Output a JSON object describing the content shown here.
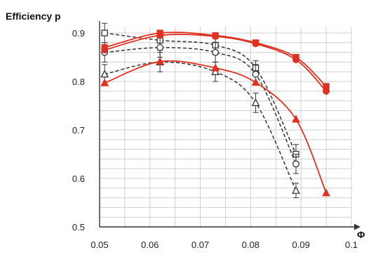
{
  "chart_data": {
    "type": "line",
    "ylabel": "Efficiency p",
    "xlabel": "Φ",
    "xlim": [
      0.05,
      0.1
    ],
    "ylim": [
      0.5,
      0.9
    ],
    "x_ticks": [
      "0.05",
      "0.06",
      "0.07",
      "0.08",
      "0.09",
      "0.1"
    ],
    "y_ticks": [
      "0.5",
      "0.6",
      "0.7",
      "0.8",
      "0.9"
    ],
    "grid": true,
    "legend": "none",
    "series": [
      {
        "color": "#e03020",
        "style": "solid",
        "marker": "square",
        "x": [
          0.051,
          0.062,
          0.073,
          0.081,
          0.089,
          0.095
        ],
        "y": [
          0.87,
          0.9,
          0.895,
          0.88,
          0.85,
          0.79
        ]
      },
      {
        "color": "#e03020",
        "style": "solid",
        "marker": "circle",
        "x": [
          0.051,
          0.062,
          0.073,
          0.081,
          0.089,
          0.095
        ],
        "y": [
          0.865,
          0.895,
          0.893,
          0.878,
          0.845,
          0.78
        ]
      },
      {
        "color": "#e03020",
        "style": "solid",
        "marker": "triangle",
        "x": [
          0.051,
          0.062,
          0.073,
          0.081,
          0.089,
          0.095
        ],
        "y": [
          0.797,
          0.841,
          0.828,
          0.798,
          0.722,
          0.57
        ]
      },
      {
        "color": "#333333",
        "style": "dashed",
        "marker": "open-square",
        "x": [
          0.051,
          0.062,
          0.073,
          0.081,
          0.089
        ],
        "y": [
          0.9,
          0.885,
          0.875,
          0.828,
          0.65
        ],
        "error": [
          0.02,
          0.02,
          0.02,
          0.015,
          0.02
        ]
      },
      {
        "color": "#333333",
        "style": "dashed",
        "marker": "open-circle",
        "x": [
          0.051,
          0.062,
          0.073,
          0.081,
          0.089
        ],
        "y": [
          0.86,
          0.87,
          0.86,
          0.815,
          0.63
        ],
        "error": [
          0.02,
          0.02,
          0.02,
          0.02,
          0.02
        ]
      },
      {
        "color": "#333333",
        "style": "dashed",
        "marker": "open-triangle",
        "x": [
          0.051,
          0.062,
          0.073,
          0.081,
          0.089
        ],
        "y": [
          0.815,
          0.84,
          0.82,
          0.756,
          0.575
        ],
        "error": [
          0.02,
          0.02,
          0.02,
          0.02,
          0.015
        ]
      }
    ]
  }
}
